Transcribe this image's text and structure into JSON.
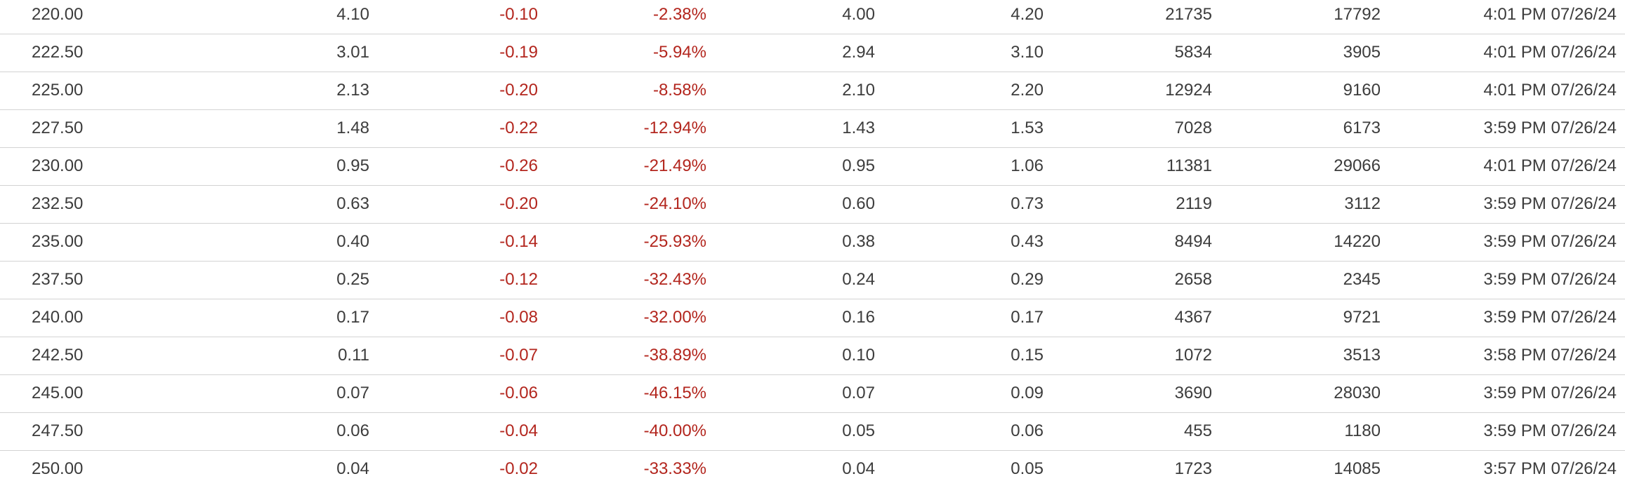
{
  "table": {
    "rows": [
      {
        "strike": "220.00",
        "last": "4.10",
        "change": "-0.10",
        "pct_change": "-2.38%",
        "bid": "4.00",
        "ask": "4.20",
        "volume": "21735",
        "open_interest": "17792",
        "time": "4:01 PM 07/26/24"
      },
      {
        "strike": "222.50",
        "last": "3.01",
        "change": "-0.19",
        "pct_change": "-5.94%",
        "bid": "2.94",
        "ask": "3.10",
        "volume": "5834",
        "open_interest": "3905",
        "time": "4:01 PM 07/26/24"
      },
      {
        "strike": "225.00",
        "last": "2.13",
        "change": "-0.20",
        "pct_change": "-8.58%",
        "bid": "2.10",
        "ask": "2.20",
        "volume": "12924",
        "open_interest": "9160",
        "time": "4:01 PM 07/26/24"
      },
      {
        "strike": "227.50",
        "last": "1.48",
        "change": "-0.22",
        "pct_change": "-12.94%",
        "bid": "1.43",
        "ask": "1.53",
        "volume": "7028",
        "open_interest": "6173",
        "time": "3:59 PM 07/26/24"
      },
      {
        "strike": "230.00",
        "last": "0.95",
        "change": "-0.26",
        "pct_change": "-21.49%",
        "bid": "0.95",
        "ask": "1.06",
        "volume": "11381",
        "open_interest": "29066",
        "time": "4:01 PM 07/26/24"
      },
      {
        "strike": "232.50",
        "last": "0.63",
        "change": "-0.20",
        "pct_change": "-24.10%",
        "bid": "0.60",
        "ask": "0.73",
        "volume": "2119",
        "open_interest": "3112",
        "time": "3:59 PM 07/26/24"
      },
      {
        "strike": "235.00",
        "last": "0.40",
        "change": "-0.14",
        "pct_change": "-25.93%",
        "bid": "0.38",
        "ask": "0.43",
        "volume": "8494",
        "open_interest": "14220",
        "time": "3:59 PM 07/26/24"
      },
      {
        "strike": "237.50",
        "last": "0.25",
        "change": "-0.12",
        "pct_change": "-32.43%",
        "bid": "0.24",
        "ask": "0.29",
        "volume": "2658",
        "open_interest": "2345",
        "time": "3:59 PM 07/26/24"
      },
      {
        "strike": "240.00",
        "last": "0.17",
        "change": "-0.08",
        "pct_change": "-32.00%",
        "bid": "0.16",
        "ask": "0.17",
        "volume": "4367",
        "open_interest": "9721",
        "time": "3:59 PM 07/26/24"
      },
      {
        "strike": "242.50",
        "last": "0.11",
        "change": "-0.07",
        "pct_change": "-38.89%",
        "bid": "0.10",
        "ask": "0.15",
        "volume": "1072",
        "open_interest": "3513",
        "time": "3:58 PM 07/26/24"
      },
      {
        "strike": "245.00",
        "last": "0.07",
        "change": "-0.06",
        "pct_change": "-46.15%",
        "bid": "0.07",
        "ask": "0.09",
        "volume": "3690",
        "open_interest": "28030",
        "time": "3:59 PM 07/26/24"
      },
      {
        "strike": "247.50",
        "last": "0.06",
        "change": "-0.04",
        "pct_change": "-40.00%",
        "bid": "0.05",
        "ask": "0.06",
        "volume": "455",
        "open_interest": "1180",
        "time": "3:59 PM 07/26/24"
      },
      {
        "strike": "250.00",
        "last": "0.04",
        "change": "-0.02",
        "pct_change": "-33.33%",
        "bid": "0.04",
        "ask": "0.05",
        "volume": "1723",
        "open_interest": "14085",
        "time": "3:57 PM 07/26/24"
      }
    ]
  },
  "colors": {
    "text": "#3c3c3c",
    "negative": "#b3261e",
    "divider": "#d3d3d3",
    "background": "#ffffff"
  }
}
